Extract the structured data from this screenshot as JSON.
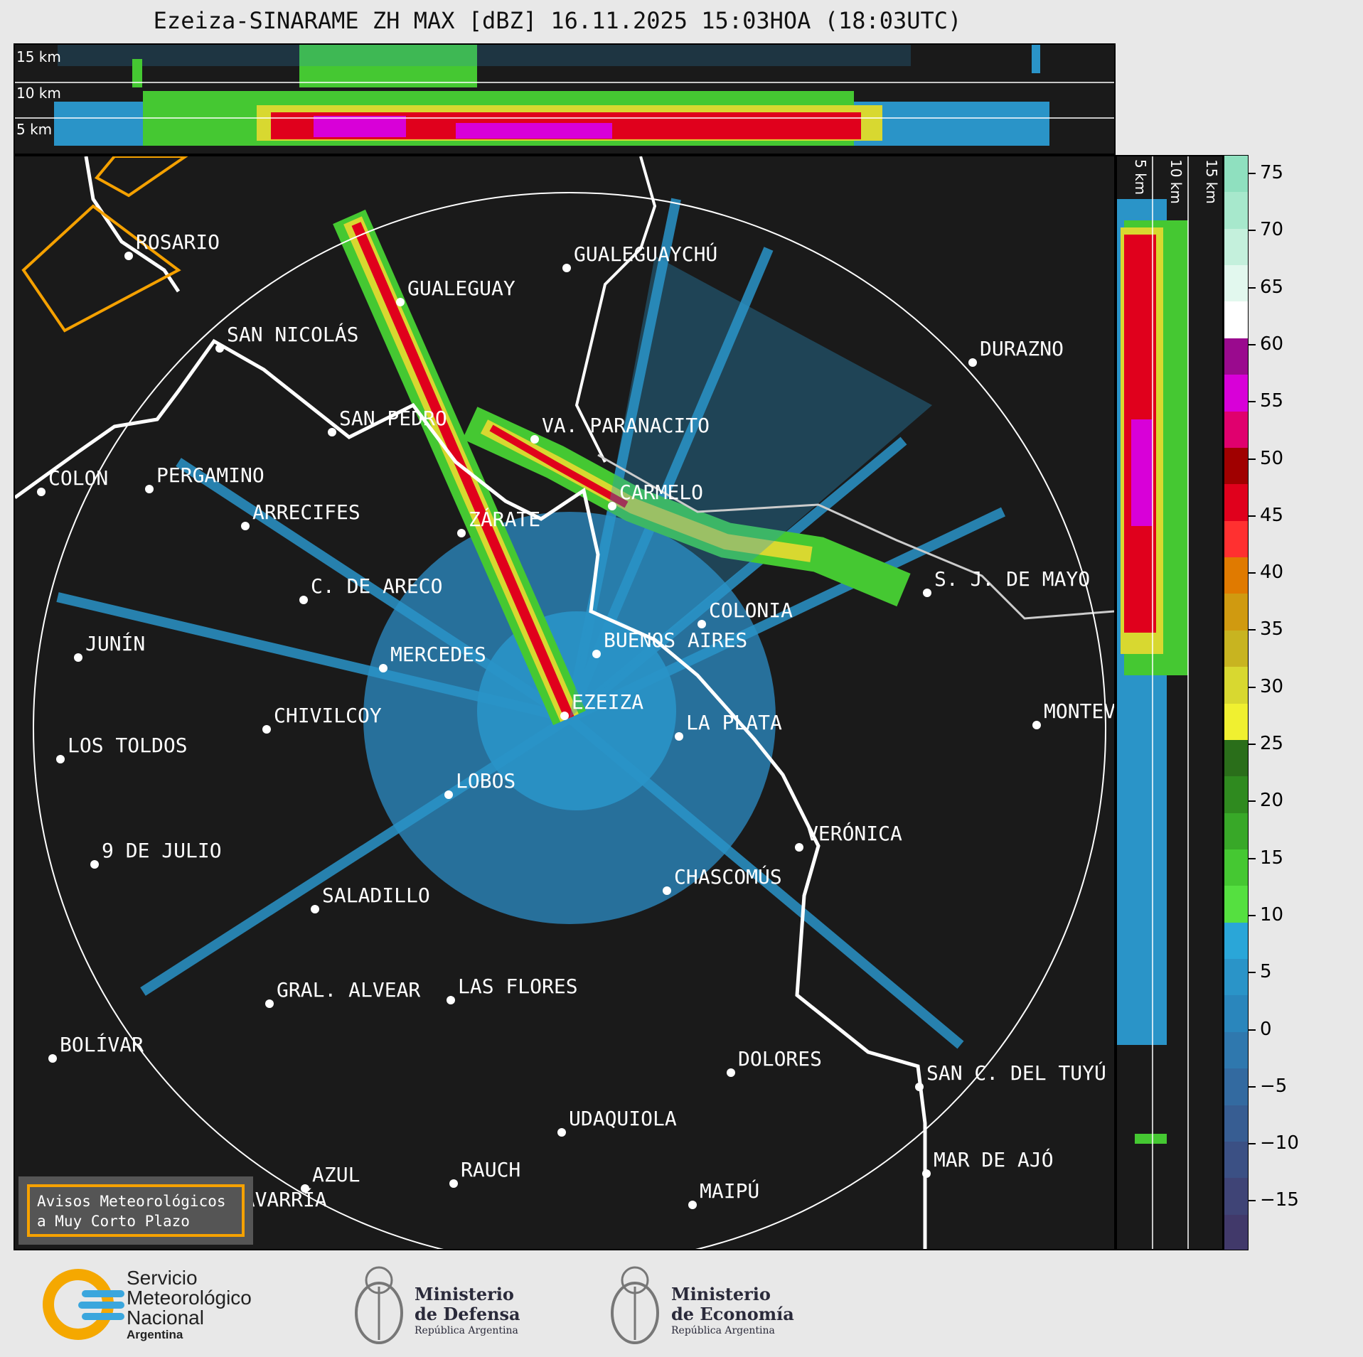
{
  "title": "Ezeiza-SINARAME ZH MAX [dBZ] 16.11.2025 15:03HOA (18:03UTC)",
  "top_panel": {
    "altitudes": [
      "15 km",
      "10 km",
      "5 km"
    ]
  },
  "side_panel": {
    "altitudes": [
      "5 km",
      "10 km",
      "15 km"
    ]
  },
  "colorbar": {
    "unit": "dBZ",
    "ticks": [
      "75",
      "70",
      "65",
      "60",
      "55",
      "50",
      "45",
      "40",
      "35",
      "30",
      "25",
      "20",
      "15",
      "10",
      "5",
      "0",
      "−5",
      "−10",
      "−15"
    ],
    "colors": [
      "#8fe0bf",
      "#a7e8cc",
      "#c4f0dc",
      "#e2f8ee",
      "#ffffff",
      "#9a0a8e",
      "#d800d8",
      "#e0006e",
      "#a00000",
      "#e0001c",
      "#ff3030",
      "#e07a00",
      "#d09a10",
      "#c8b420",
      "#d8d830",
      "#f0f030",
      "#2a6e1a",
      "#2f8a1f",
      "#38a828",
      "#45c832",
      "#55e040",
      "#2aa6d8",
      "#2a94c8",
      "#2a86bc",
      "#2f78ae",
      "#336aa0",
      "#375d92",
      "#3b5084",
      "#3f4476",
      "#41396a"
    ]
  },
  "cities": [
    {
      "name": "ROSARIO"
    },
    {
      "name": "GUALEGUAY"
    },
    {
      "name": "GUALEGUAYCHÚ"
    },
    {
      "name": "SAN NICOLÁS"
    },
    {
      "name": "DURAZNO"
    },
    {
      "name": "SAN PEDRO"
    },
    {
      "name": "VA. PARANACITO"
    },
    {
      "name": "COLON"
    },
    {
      "name": "PERGAMINO"
    },
    {
      "name": "CARMELO"
    },
    {
      "name": "ARRECIFES"
    },
    {
      "name": "ZÁRATE"
    },
    {
      "name": "C. DE ARECO"
    },
    {
      "name": "S. J. DE MAYO"
    },
    {
      "name": "COLONIA"
    },
    {
      "name": "JUNÍN"
    },
    {
      "name": "BUENOS AIRES"
    },
    {
      "name": "MERCEDES"
    },
    {
      "name": "EZEIZA"
    },
    {
      "name": "MONTEVIDEO"
    },
    {
      "name": "CHIVILCOY"
    },
    {
      "name": "LA PLATA"
    },
    {
      "name": "LOS TOLDOS"
    },
    {
      "name": "LOBOS"
    },
    {
      "name": "VERÓNICA"
    },
    {
      "name": "9 DE JULIO"
    },
    {
      "name": "CHASCOMÚS"
    },
    {
      "name": "SALADILLO"
    },
    {
      "name": "GRAL. ALVEAR"
    },
    {
      "name": "LAS FLORES"
    },
    {
      "name": "BOLÍVAR"
    },
    {
      "name": "DOLORES"
    },
    {
      "name": "SAN C. DEL TUYÚ"
    },
    {
      "name": "UDAQUIOLA"
    },
    {
      "name": "RAUCH"
    },
    {
      "name": "MAR DE AJÓ"
    },
    {
      "name": "AZUL"
    },
    {
      "name": "MAIPÚ"
    },
    {
      "name": "OLAVARRÍA"
    }
  ],
  "warning_legend": {
    "line1": "Avisos Meteorológicos",
    "line2": "a Muy Corto Plazo",
    "color": "#f5a100"
  },
  "footer": {
    "smn": {
      "line1": "Servicio",
      "line2": "Meteorológico",
      "line3": "Nacional",
      "line4": "Argentina"
    },
    "defensa": {
      "line1": "Ministerio",
      "line2": "de Defensa",
      "line3": "República Argentina"
    },
    "economia": {
      "line1": "Ministerio",
      "line2": "de Economía",
      "line3": "República Argentina"
    }
  }
}
